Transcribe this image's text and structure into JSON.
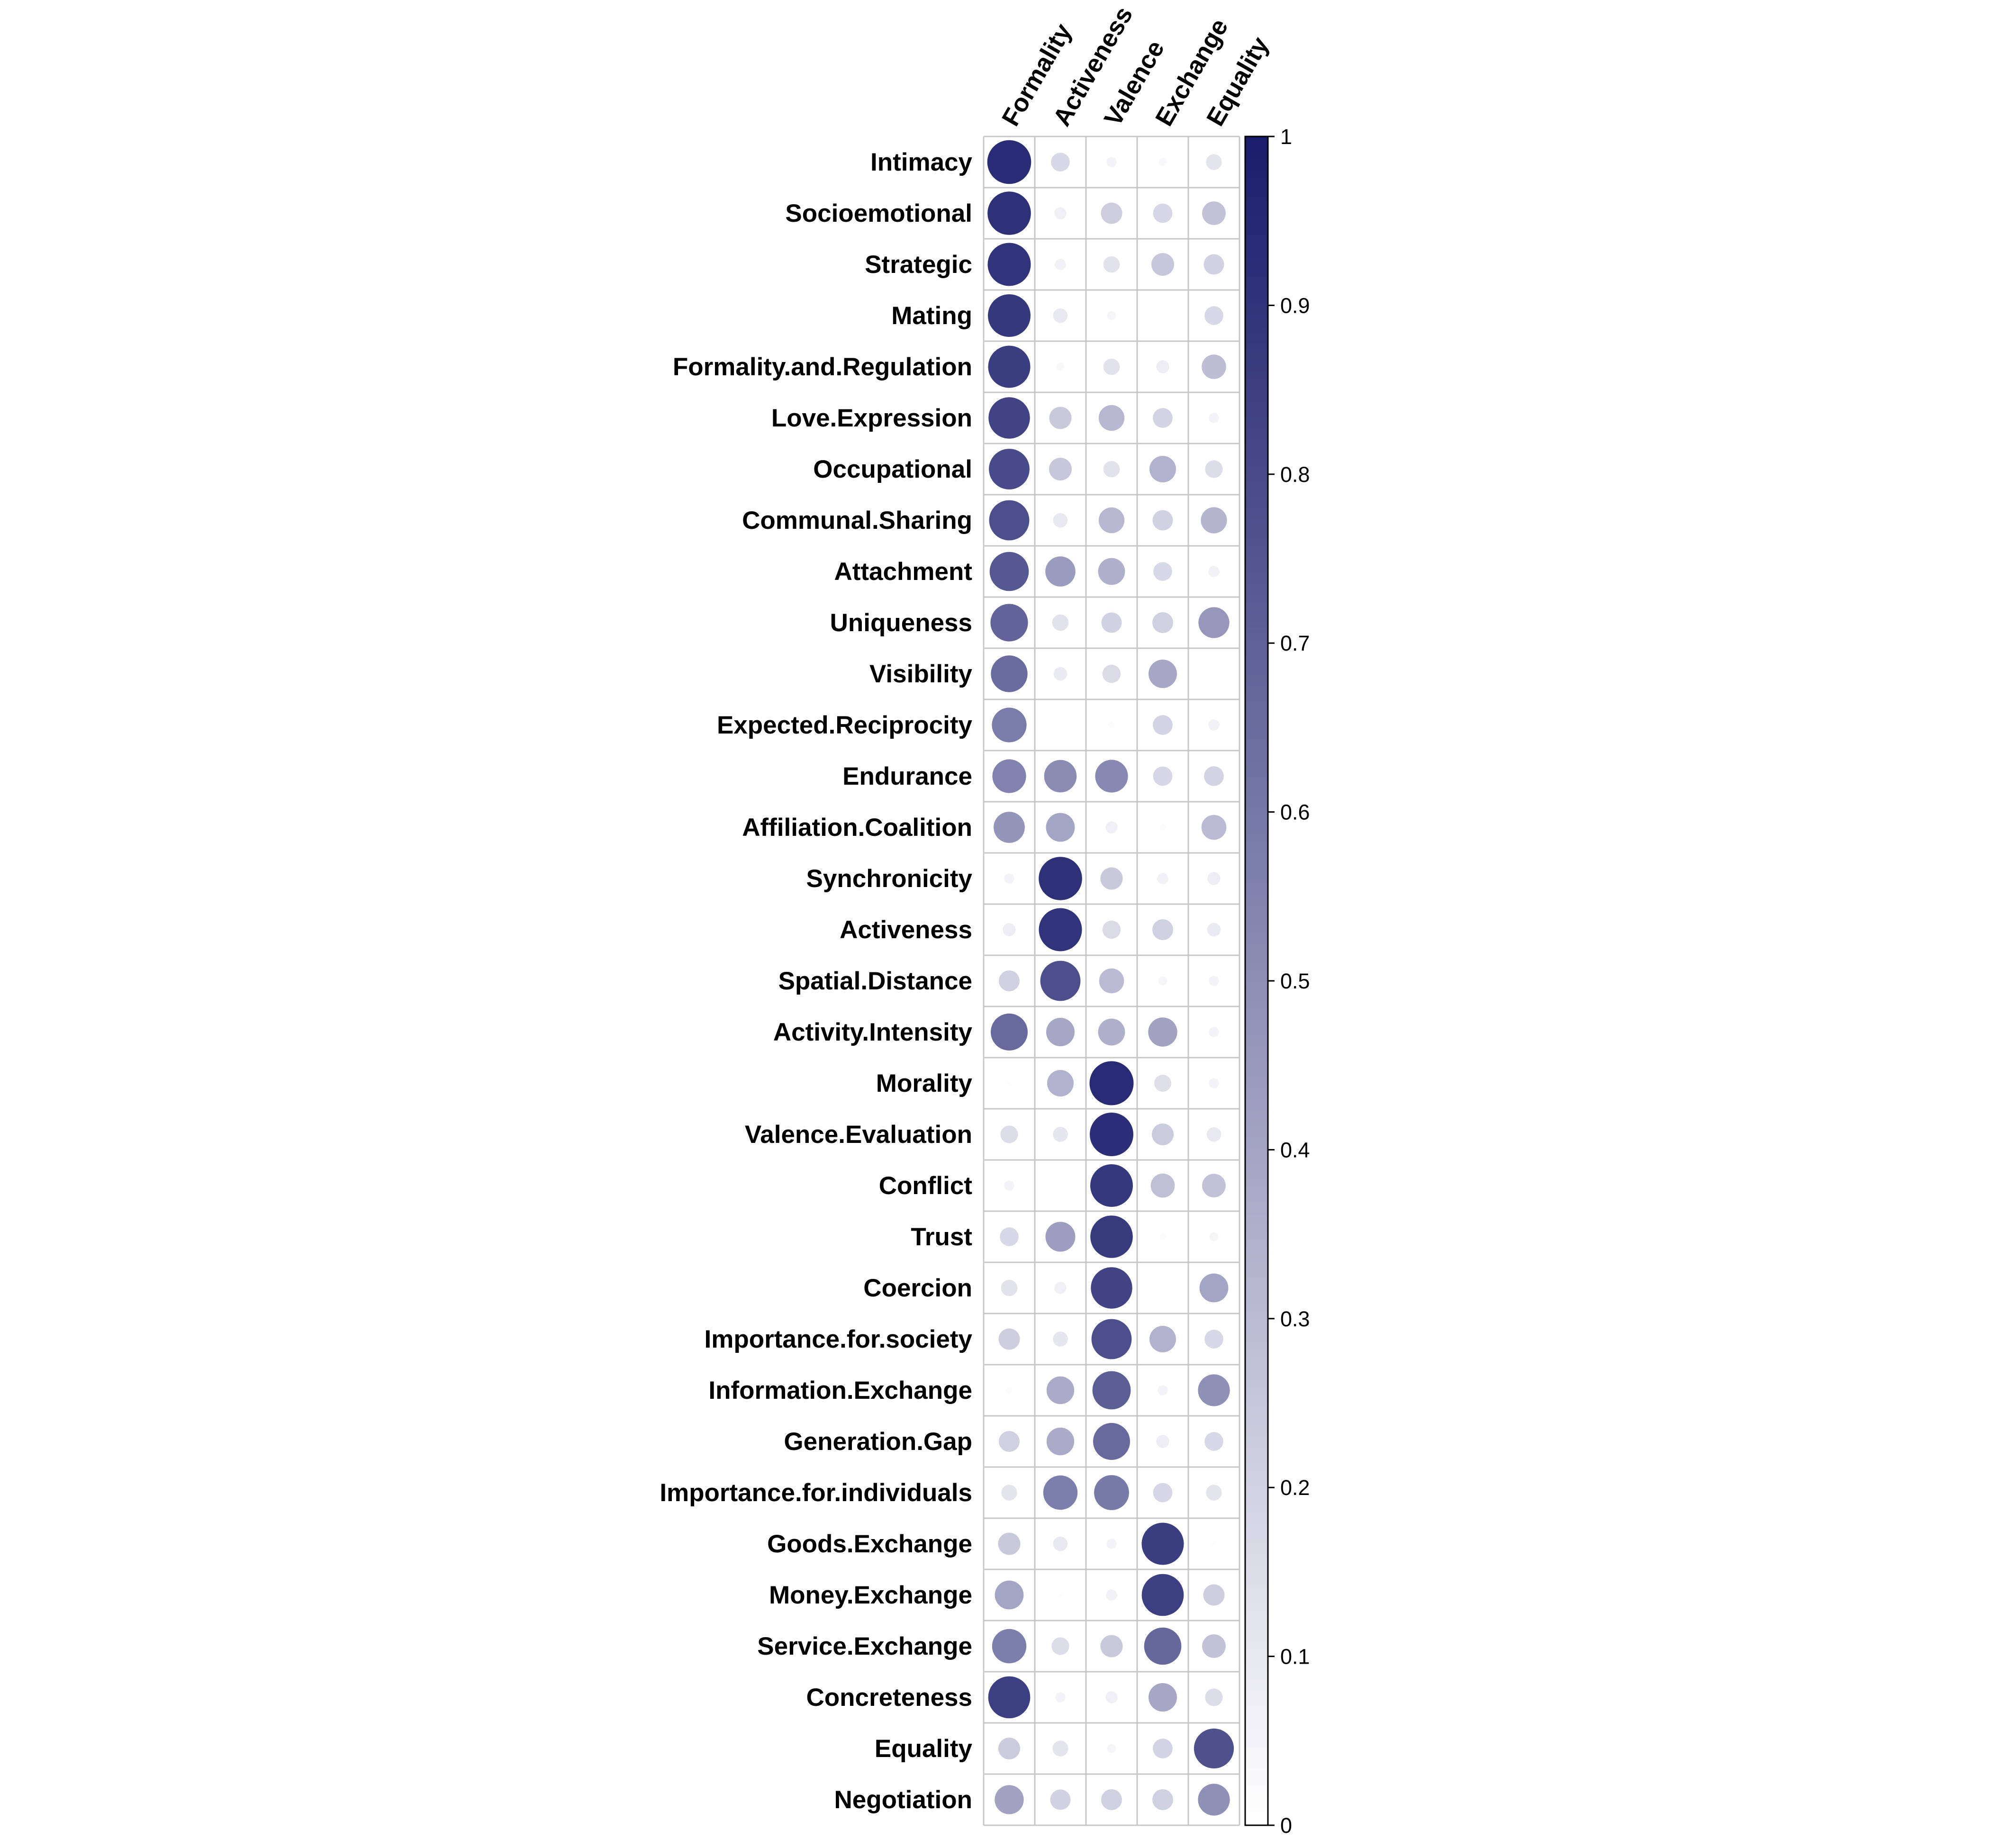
{
  "chart_data": {
    "type": "heatmap",
    "title": "",
    "columns": [
      "Formality",
      "Activeness",
      "Valence",
      "Exchange",
      "Equality"
    ],
    "rows": [
      "Intimacy",
      "Socioemotional",
      "Strategic",
      "Mating",
      "Formality.and.Regulation",
      "Love.Expression",
      "Occupational",
      "Communal.Sharing",
      "Attachment",
      "Uniqueness",
      "Visibility",
      "Expected.Reciprocity",
      "Endurance",
      "Affiliation.Coalition",
      "Synchronicity",
      "Activeness",
      "Spatial.Distance",
      "Activity.Intensity",
      "Morality",
      "Valence.Evaluation",
      "Conflict",
      "Trust",
      "Coercion",
      "Importance.for.society",
      "Information.Exchange",
      "Generation.Gap",
      "Importance.for.individuals",
      "Goods.Exchange",
      "Money.Exchange",
      "Service.Exchange",
      "Concreteness",
      "Equality",
      "Negotiation"
    ],
    "values": [
      [
        0.93,
        0.17,
        0.05,
        0.03,
        0.12
      ],
      [
        0.91,
        0.07,
        0.22,
        0.18,
        0.27
      ],
      [
        0.9,
        0.06,
        0.13,
        0.25,
        0.2
      ],
      [
        0.88,
        0.1,
        0.04,
        0.0,
        0.17
      ],
      [
        0.86,
        0.03,
        0.13,
        0.08,
        0.29
      ],
      [
        0.83,
        0.24,
        0.32,
        0.19,
        0.05
      ],
      [
        0.8,
        0.25,
        0.13,
        0.34,
        0.15
      ],
      [
        0.78,
        0.1,
        0.32,
        0.2,
        0.33
      ],
      [
        0.74,
        0.44,
        0.35,
        0.17,
        0.06
      ],
      [
        0.68,
        0.13,
        0.2,
        0.21,
        0.46
      ],
      [
        0.65,
        0.09,
        0.16,
        0.39,
        0.0
      ],
      [
        0.58,
        0.0,
        0.02,
        0.19,
        0.06
      ],
      [
        0.55,
        0.51,
        0.52,
        0.18,
        0.19
      ],
      [
        0.47,
        0.4,
        0.07,
        0.02,
        0.3
      ],
      [
        0.05,
        0.91,
        0.24,
        0.06,
        0.08
      ],
      [
        0.08,
        0.9,
        0.16,
        0.21,
        0.09
      ],
      [
        0.21,
        0.78,
        0.3,
        0.04,
        0.05
      ],
      [
        0.66,
        0.39,
        0.35,
        0.41,
        0.05
      ],
      [
        0.01,
        0.34,
        0.94,
        0.14,
        0.05
      ],
      [
        0.15,
        0.11,
        0.92,
        0.23,
        0.1
      ],
      [
        0.05,
        0.0,
        0.88,
        0.28,
        0.27
      ],
      [
        0.17,
        0.43,
        0.87,
        0.02,
        0.04
      ],
      [
        0.13,
        0.07,
        0.83,
        0.0,
        0.4
      ],
      [
        0.22,
        0.11,
        0.78,
        0.34,
        0.17
      ],
      [
        0.02,
        0.37,
        0.71,
        0.05,
        0.49
      ],
      [
        0.21,
        0.37,
        0.66,
        0.08,
        0.17
      ],
      [
        0.12,
        0.57,
        0.59,
        0.18,
        0.12
      ],
      [
        0.24,
        0.1,
        0.05,
        0.86,
        0.01
      ],
      [
        0.4,
        0.01,
        0.06,
        0.85,
        0.22
      ],
      [
        0.57,
        0.15,
        0.24,
        0.67,
        0.27
      ],
      [
        0.85,
        0.05,
        0.07,
        0.39,
        0.15
      ],
      [
        0.23,
        0.12,
        0.04,
        0.19,
        0.77
      ],
      [
        0.41,
        0.2,
        0.21,
        0.21,
        0.49
      ]
    ],
    "colorbar": {
      "ticks": [
        "0",
        "0.1",
        "0.2",
        "0.3",
        "0.4",
        "0.5",
        "0.6",
        "0.7",
        "0.8",
        "0.9",
        "1"
      ],
      "range": [
        0,
        1
      ],
      "low_color": "#ffffff",
      "high_color": "#1a1d6b"
    },
    "grid": true,
    "grid_color": "#c8c8c8",
    "legend_placement": "right",
    "xlabel": "",
    "ylabel": ""
  }
}
